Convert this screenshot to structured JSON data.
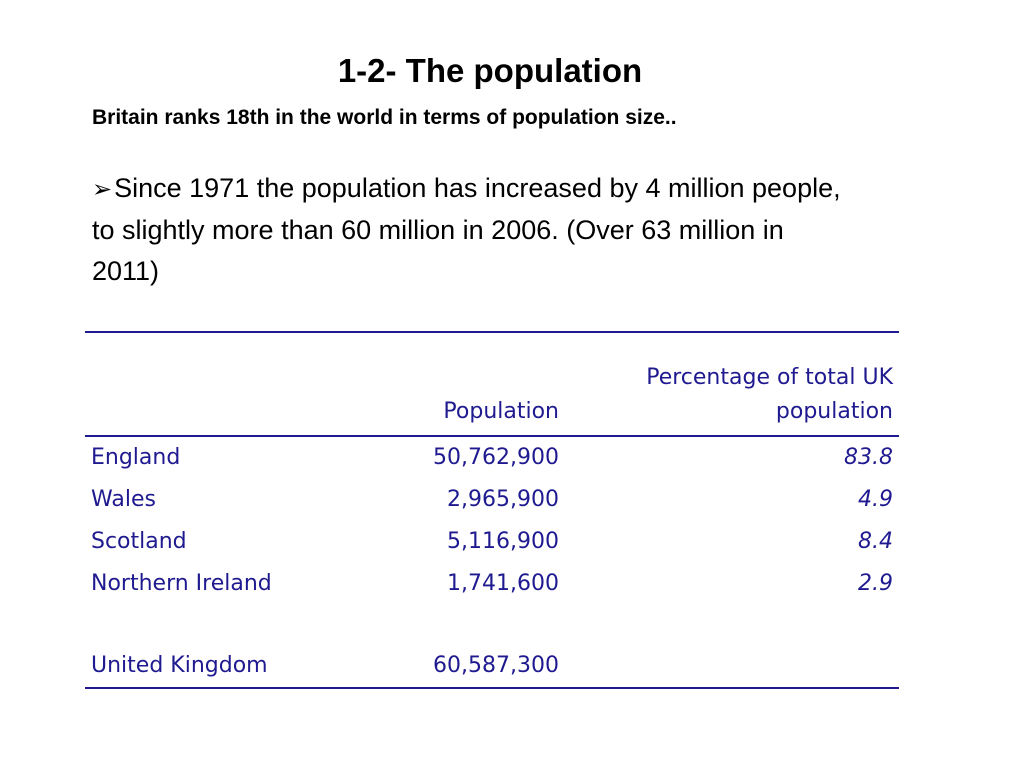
{
  "slide": {
    "title": "1-2- The population",
    "subtitle": "Britain ranks 18th in the world in terms of population size..",
    "bullet_marker": "➢",
    "bullet_text": "Since 1971 the population has increased by 4 million people, to slightly more than 60 million in 2006. (Over 63 million in 2011)"
  },
  "table": {
    "headers": {
      "region": "",
      "population": "Population",
      "percentage": "Percentage of total UK population"
    },
    "rows": [
      {
        "region": "England",
        "population": "50,762,900",
        "percentage": "83.8"
      },
      {
        "region": "Wales",
        "population": "2,965,900",
        "percentage": "4.9"
      },
      {
        "region": "Scotland",
        "population": "5,116,900",
        "percentage": "8.4"
      },
      {
        "region": "Northern Ireland",
        "population": "1,741,600",
        "percentage": "2.9"
      }
    ],
    "total": {
      "region": "United Kingdom",
      "population": "60,587,300",
      "percentage": ""
    }
  },
  "colors": {
    "table_text": "#1f1a8f",
    "body_text": "#000000",
    "background": "#ffffff"
  }
}
